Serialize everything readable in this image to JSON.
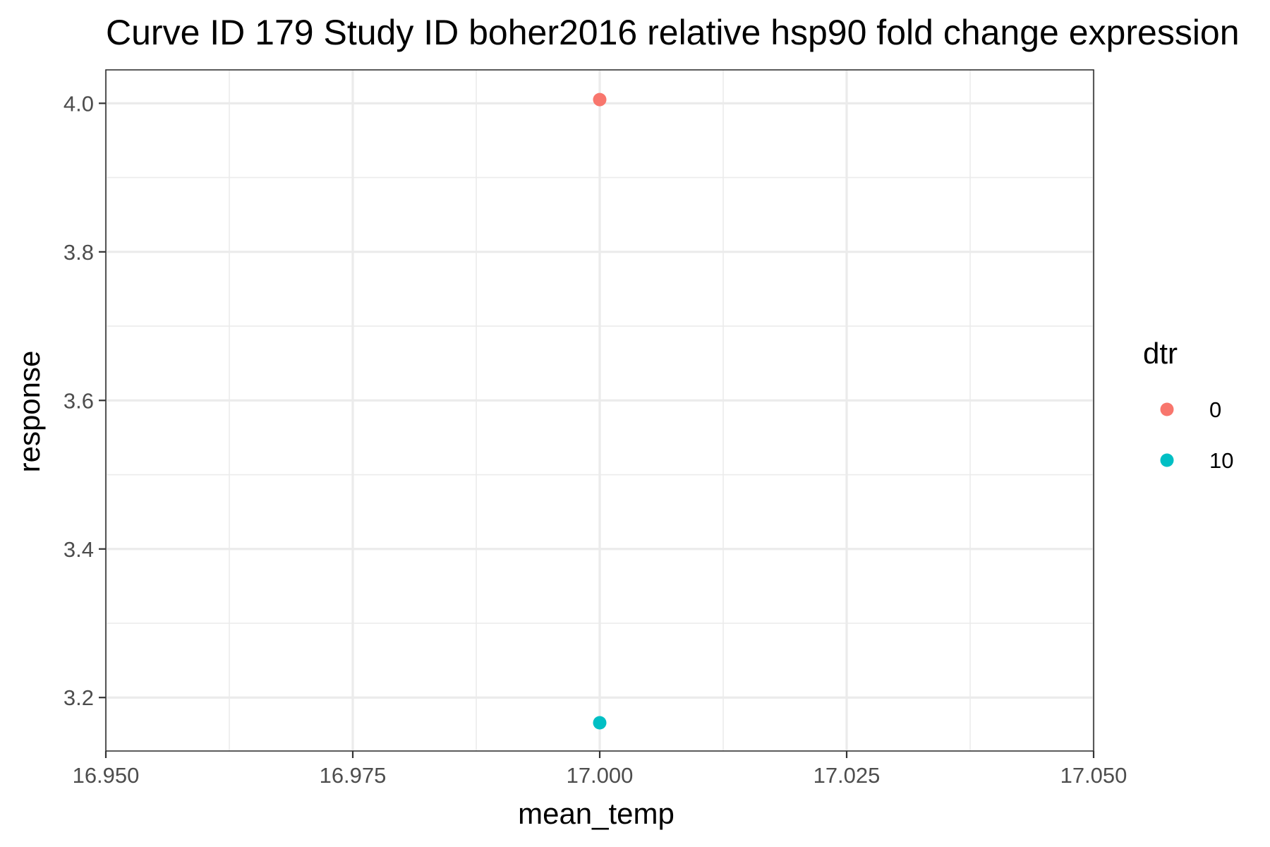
{
  "chart_data": {
    "type": "scatter",
    "title": "Curve ID 179 Study ID boher2016 relative hsp90 fold change expression",
    "xlabel": "mean_temp",
    "ylabel": "response",
    "xlim": [
      16.95,
      17.05
    ],
    "ylim": [
      3.128,
      4.045
    ],
    "x_ticks": [
      16.95,
      16.975,
      17.0,
      17.025,
      17.05
    ],
    "x_tick_labels": [
      "16.950",
      "16.975",
      "17.000",
      "17.025",
      "17.050"
    ],
    "y_ticks": [
      3.2,
      3.4,
      3.6,
      3.8,
      4.0
    ],
    "y_tick_labels": [
      "3.2",
      "3.4",
      "3.6",
      "3.8",
      "4.0"
    ],
    "grid": true,
    "legend": {
      "title": "dtr",
      "placement": "right",
      "entries": [
        {
          "label": "0",
          "color": "#F8766D"
        },
        {
          "label": "10",
          "color": "#00BFC4"
        }
      ]
    },
    "series": [
      {
        "name": "0",
        "color": "#F8766D",
        "points": [
          {
            "x": 17.0,
            "y": 4.005
          }
        ]
      },
      {
        "name": "10",
        "color": "#00BFC4",
        "points": [
          {
            "x": 17.0,
            "y": 3.166
          }
        ]
      }
    ]
  }
}
